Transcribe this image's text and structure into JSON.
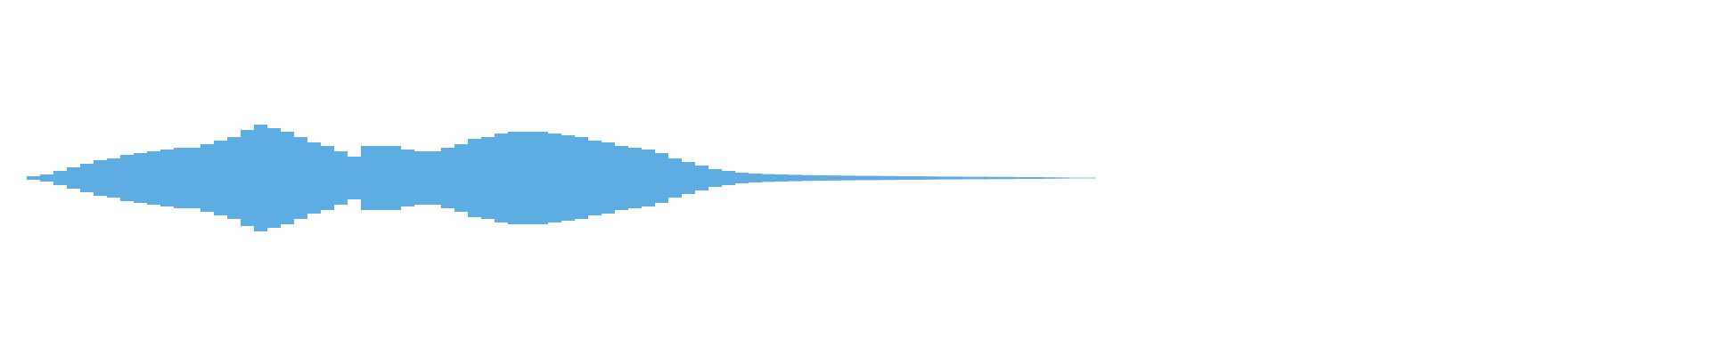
{
  "chart_data": {
    "type": "waveform",
    "color": "#5dade2",
    "ylim": [
      -1,
      1
    ],
    "values": [
      0,
      0,
      0.01,
      0.02,
      0.04,
      0.06,
      0.08,
      0.1,
      0.11,
      0.13,
      0.14,
      0.15,
      0.16,
      0.17,
      0.17,
      0.19,
      0.21,
      0.23,
      0.27,
      0.3,
      0.28,
      0.26,
      0.23,
      0.2,
      0.18,
      0.15,
      0.12,
      0.18,
      0.18,
      0.18,
      0.16,
      0.15,
      0.15,
      0.17,
      0.19,
      0.22,
      0.23,
      0.25,
      0.26,
      0.26,
      0.26,
      0.25,
      0.24,
      0.23,
      0.21,
      0.2,
      0.18,
      0.17,
      0.16,
      0.14,
      0.11,
      0.09,
      0.07,
      0.05,
      0.04,
      0.03,
      0.025,
      0.022,
      0.02,
      0.018,
      0.016,
      0.015,
      0.014,
      0.013,
      0.012,
      0.012,
      0.011,
      0.01,
      0.01,
      0.009,
      0.008,
      0.008,
      0.007,
      0.007,
      0.006,
      0.006,
      0.005,
      0.005,
      0.004,
      0.003,
      0.002,
      0.002,
      0,
      0,
      0,
      0,
      0,
      0,
      0,
      0,
      0,
      0,
      0,
      0,
      0,
      0,
      0,
      0,
      0,
      0,
      0,
      0,
      0,
      0,
      0,
      0,
      0,
      0,
      0,
      0,
      0,
      0,
      0,
      0,
      0,
      0,
      0,
      0,
      0,
      0,
      0,
      0,
      0,
      0,
      0,
      0,
      0,
      0
    ]
  }
}
